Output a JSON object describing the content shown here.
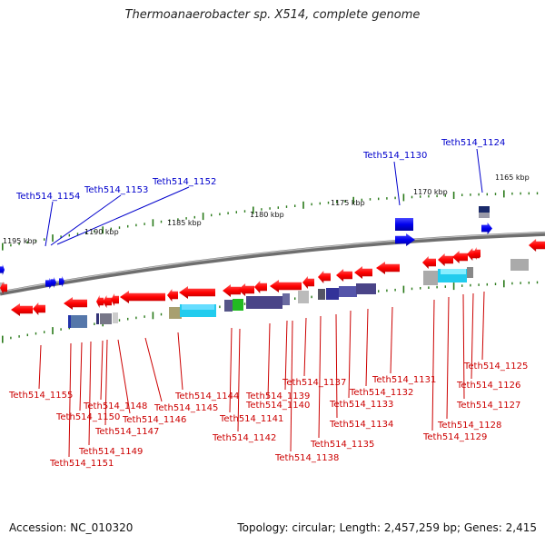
{
  "title": "Thermoanaerobacter sp. X514, complete genome",
  "footer": {
    "accession": "Accession: NC_010320",
    "summary": "Topology: circular; Length: 2,457,259 bp; Genes: 2,415"
  },
  "colors": {
    "forward_label": "#0000cc",
    "reverse_label": "#cc0000",
    "backbone": "#808080",
    "tick": "#2a7a1a"
  },
  "kbp_ticks": [
    "1195 kbp",
    "1190 kbp",
    "1185 kbp",
    "1180 kbp",
    "1175 kbp",
    "1170 kbp",
    "1165 kbp"
  ],
  "forward_genes": [
    "Teth514_1154",
    "Teth514_1153",
    "Teth514_1152",
    "Teth514_1130",
    "Teth514_1124"
  ],
  "reverse_genes": [
    "Teth514_1155",
    "Teth514_1151",
    "Teth514_1150",
    "Teth514_1149",
    "Teth514_1148",
    "Teth514_1147",
    "Teth514_1146",
    "Teth514_1145",
    "Teth514_1144",
    "Teth514_1142",
    "Teth514_1141",
    "Teth514_1140",
    "Teth514_1139",
    "Teth514_1138",
    "Teth514_1137",
    "Teth514_1135",
    "Teth514_1134",
    "Teth514_1133",
    "Teth514_1132",
    "Teth514_1131",
    "Teth514_1129",
    "Teth514_1128",
    "Teth514_1127",
    "Teth514_1126",
    "Teth514_1125"
  ]
}
